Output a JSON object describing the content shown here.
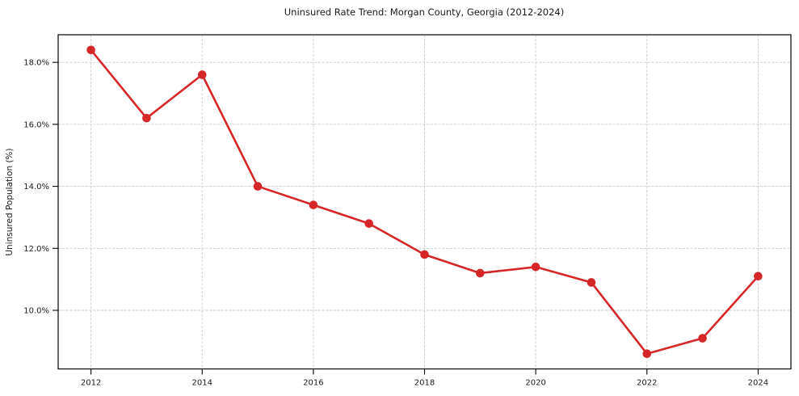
{
  "chart_data": {
    "type": "line",
    "title": "Uninsured Rate Trend: Morgan County, Georgia (2012-2024)",
    "xlabel": "",
    "ylabel": "Uninsured Population (%)",
    "x": [
      2012,
      2013,
      2014,
      2015,
      2016,
      2017,
      2018,
      2019,
      2020,
      2021,
      2022,
      2023,
      2024
    ],
    "values": [
      18.4,
      16.2,
      17.6,
      14.0,
      13.4,
      12.8,
      11.8,
      11.2,
      11.4,
      10.9,
      8.6,
      9.1,
      11.1
    ],
    "xticks": [
      2012,
      2014,
      2016,
      2018,
      2020,
      2022,
      2024
    ],
    "xtick_labels": [
      "2012",
      "2014",
      "2016",
      "2018",
      "2020",
      "2022",
      "2024"
    ],
    "yticks": [
      10,
      12,
      14,
      16,
      18
    ],
    "ytick_labels": [
      "10.0%",
      "12.0%",
      "14.0%",
      "16.0%",
      "18.0%"
    ],
    "xlim": [
      2011.41,
      2024.59
    ],
    "ylim": [
      8.11,
      18.89
    ],
    "grid": true,
    "grid_style": "dashed",
    "legend_position": "none",
    "line_color": "#d62728",
    "marker": "circle",
    "grid_color": "#cccccc",
    "spine_color": "#000000",
    "text_color": "#1a1a1a",
    "background_color": "#ffffff"
  }
}
